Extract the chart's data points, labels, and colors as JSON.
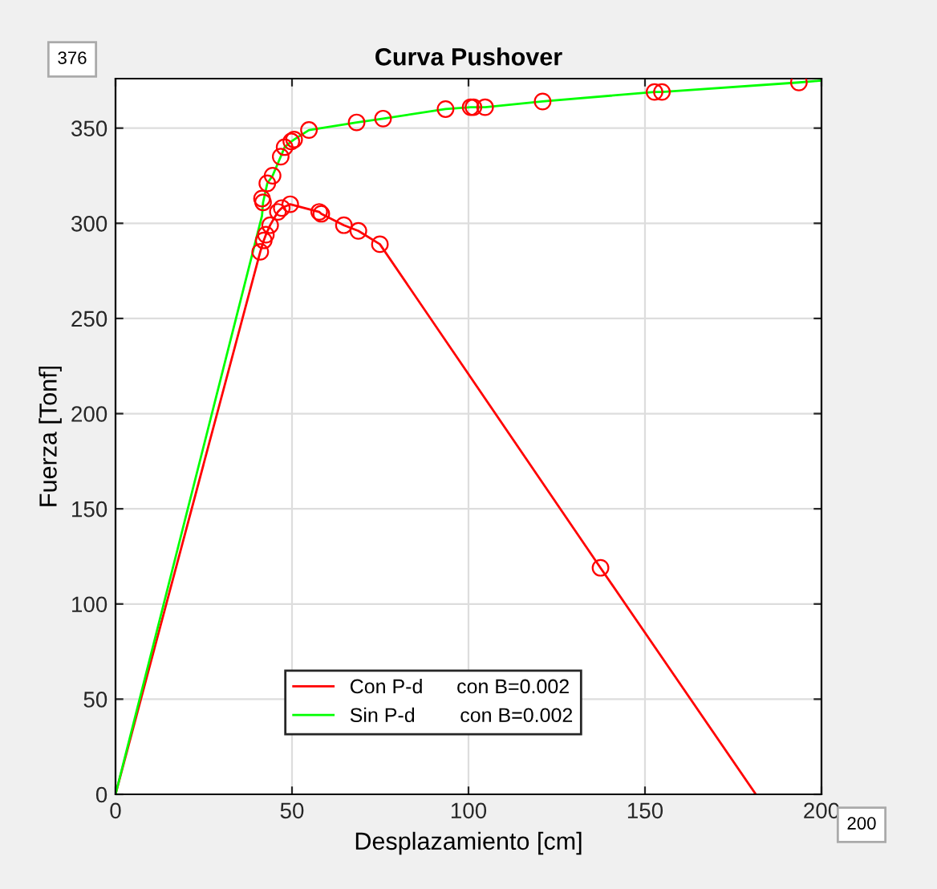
{
  "chart_data": {
    "type": "line",
    "title": "Curva Pushover",
    "xlabel": "Desplazamiento [cm]",
    "ylabel": "Fuerza [Tonf]",
    "xlim": [
      0,
      200
    ],
    "ylim": [
      0,
      376
    ],
    "xticks": [
      0,
      50,
      100,
      150,
      200
    ],
    "yticks": [
      0,
      50,
      100,
      150,
      200,
      250,
      300,
      350
    ],
    "grid": true,
    "legend": "bottom",
    "annotations": [
      "376",
      "200"
    ],
    "series": [
      {
        "name": "Con P-d      con B=0.002",
        "color": "#ff0000",
        "marker": "none",
        "x": [
          0,
          41,
          42,
          42.6,
          43.8,
          46,
          47.1,
          49.5,
          57.7,
          58.3,
          64.7,
          68.8,
          74.9,
          137.4,
          181.4
        ],
        "values": [
          0,
          285,
          291,
          294,
          299,
          306,
          308,
          310,
          306,
          305,
          299,
          296,
          289,
          119,
          0
        ]
      },
      {
        "name": "Sin P-d        con B=0.002",
        "color": "#00ff00",
        "marker": "none",
        "x": [
          0,
          41.5,
          41.8,
          43,
          44.5,
          46.8,
          47.9,
          49.8,
          50.6,
          54.8,
          68.3,
          75.8,
          93.5,
          100.6,
          101.4,
          104.7,
          121,
          152.7,
          154.8,
          193.6,
          200
        ],
        "values": [
          0,
          304,
          311,
          321,
          325,
          335,
          340,
          343,
          344,
          349,
          353,
          355,
          360,
          361,
          361,
          361,
          364,
          369,
          369,
          374,
          375
        ]
      },
      {
        "type": "scatter",
        "color": "#ff0000",
        "marker": "circle",
        "x": [
          41,
          42,
          42.6,
          43.8,
          46,
          47.1,
          49.5,
          57.7,
          58.3,
          64.7,
          68.8,
          74.9,
          137.4,
          41.5,
          41.8,
          43,
          44.5,
          46.8,
          47.9,
          49.8,
          50.6,
          54.8,
          68.3,
          75.8,
          93.5,
          100.6,
          101.4,
          104.7,
          121,
          152.7,
          154.8,
          193.6
        ],
        "values": [
          285,
          291,
          294,
          299,
          306,
          308,
          310,
          306,
          305,
          299,
          296,
          289,
          119,
          313,
          311,
          321,
          325,
          335,
          340,
          343,
          344,
          349,
          353,
          355,
          360,
          361,
          361,
          361,
          364,
          369,
          369,
          374
        ]
      }
    ]
  }
}
